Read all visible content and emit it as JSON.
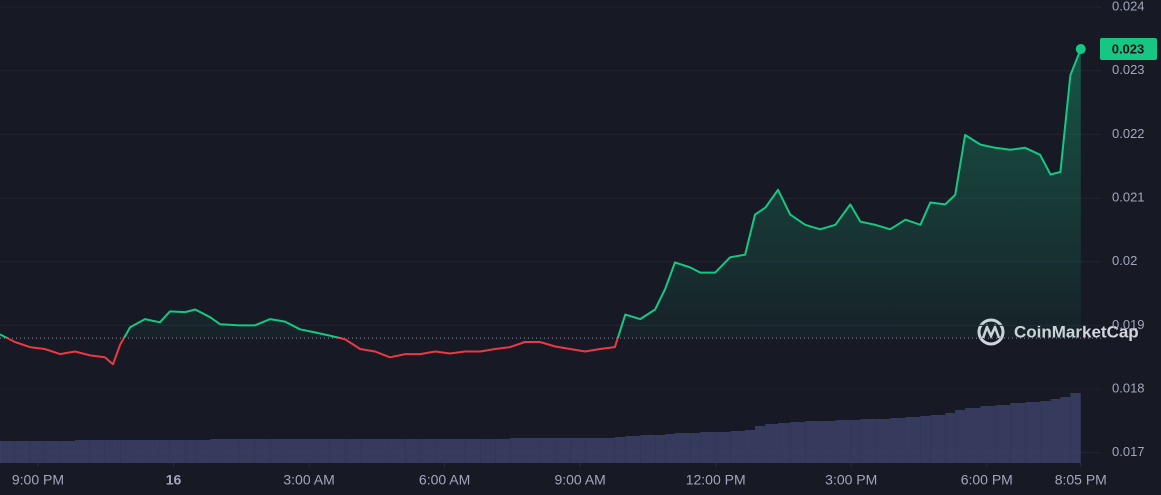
{
  "chart_data": {
    "type": "line",
    "x": [
      -0.84,
      -0.51,
      -0.18,
      0.15,
      0.49,
      0.82,
      1.15,
      1.48,
      1.66,
      1.82,
      2.04,
      2.37,
      2.7,
      2.92,
      3.26,
      3.48,
      3.81,
      4.03,
      4.47,
      4.8,
      5.14,
      5.47,
      5.8,
      6.13,
      6.46,
      6.8,
      7.13,
      7.46,
      7.79,
      8.13,
      8.46,
      8.79,
      9.12,
      9.45,
      9.79,
      10.12,
      10.45,
      10.78,
      11.11,
      11.45,
      11.78,
      12.11,
      12.44,
      12.77,
      13.0,
      13.33,
      13.66,
      13.88,
      14.1,
      14.44,
      14.66,
      14.99,
      15.32,
      15.65,
      15.87,
      16.1,
      16.38,
      16.65,
      16.98,
      17.31,
      17.65,
      17.98,
      18.2,
      18.53,
      18.86,
      19.2,
      19.53,
      19.75,
      20.08,
      20.3,
      20.52,
      20.86,
      21.19,
      21.52,
      21.85,
      22.18,
      22.41,
      22.63,
      22.85,
      23.08
    ],
    "values": [
      0.01886,
      0.01874,
      0.01866,
      0.01863,
      0.01855,
      0.01859,
      0.01853,
      0.0185,
      0.01839,
      0.0187,
      0.01897,
      0.0191,
      0.01905,
      0.01922,
      0.01921,
      0.01925,
      0.01913,
      0.01902,
      0.019,
      0.019,
      0.0191,
      0.01906,
      0.01894,
      0.01889,
      0.01884,
      0.01878,
      0.01863,
      0.01859,
      0.0185,
      0.01855,
      0.01855,
      0.01859,
      0.01856,
      0.01859,
      0.01859,
      0.01863,
      0.01866,
      0.01874,
      0.01874,
      0.01867,
      0.01863,
      0.01859,
      0.01863,
      0.01866,
      0.01917,
      0.0191,
      0.01925,
      0.01957,
      0.01999,
      0.01991,
      0.01983,
      0.01983,
      0.02007,
      0.02011,
      0.02074,
      0.02085,
      0.02113,
      0.02074,
      0.02058,
      0.02051,
      0.02058,
      0.0209,
      0.02063,
      0.02058,
      0.02051,
      0.02066,
      0.02058,
      0.02093,
      0.0209,
      0.02105,
      0.02199,
      0.02184,
      0.02179,
      0.02176,
      0.02179,
      0.02168,
      0.02137,
      0.02141,
      0.02293,
      0.02334
    ],
    "volume": [
      22,
      22,
      22,
      22,
      22,
      22,
      23,
      23,
      23,
      23,
      23,
      23,
      23,
      23,
      23,
      23,
      23,
      24,
      24,
      24,
      24,
      24,
      24,
      24,
      24,
      24,
      24,
      24,
      24,
      24,
      24,
      24,
      24,
      24,
      24,
      24,
      24,
      25,
      25,
      25,
      25,
      25,
      25,
      25,
      26,
      27,
      28,
      28,
      29,
      30,
      30,
      31,
      31,
      32,
      33,
      37,
      39,
      40,
      41,
      42,
      42,
      43,
      43,
      44,
      44,
      45,
      46,
      47,
      48,
      50,
      53,
      55,
      57,
      58,
      60,
      61,
      62,
      64,
      66,
      70
    ],
    "baseline": 0.0188,
    "current_label": "0.023",
    "up_color": "#16c784",
    "down_color": "#ea3943",
    "volume_color": "#3c4166",
    "grid": true,
    "xlim": [
      -0.84,
      23.55
    ],
    "xticks": [
      {
        "value": 0,
        "label": "9:00 PM"
      },
      {
        "value": 3,
        "label": "16"
      },
      {
        "value": 6,
        "label": "3:00 AM"
      },
      {
        "value": 9,
        "label": "6:00 AM"
      },
      {
        "value": 12,
        "label": "9:00 AM"
      },
      {
        "value": 15,
        "label": "12:00 PM"
      },
      {
        "value": 18,
        "label": "3:00 PM"
      },
      {
        "value": 21,
        "label": "6:00 PM"
      },
      {
        "value": 23.08,
        "label": "8:05 PM"
      }
    ],
    "ylim": [
      0.01684,
      0.02411
    ],
    "yticks": [
      0.017,
      0.018,
      0.019,
      0.02,
      0.021,
      0.022,
      0.023,
      0.024
    ],
    "watermark": "CoinMarketCap"
  }
}
